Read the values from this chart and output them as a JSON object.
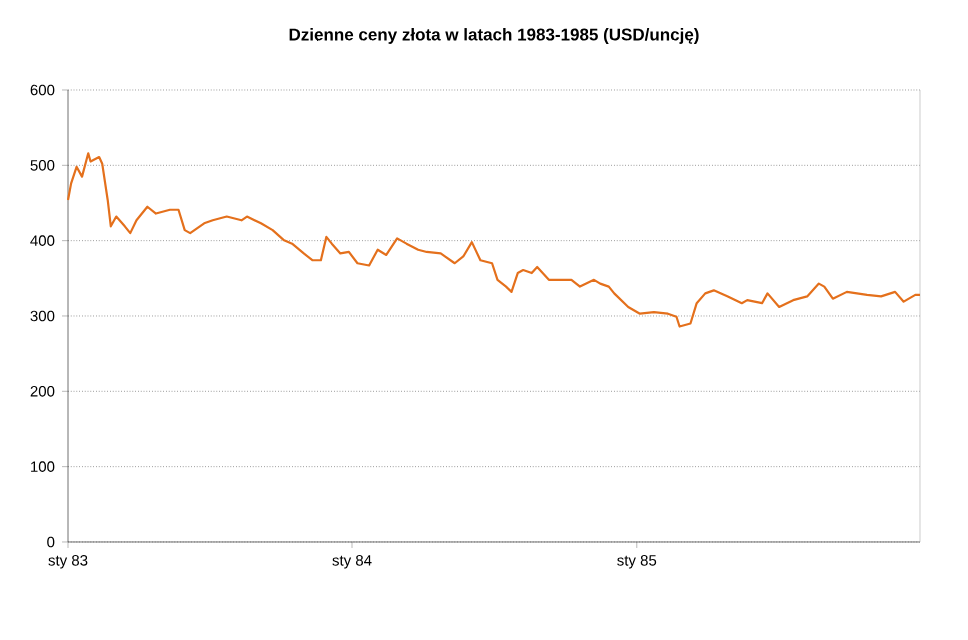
{
  "chart_data": {
    "type": "line",
    "title": "Dzienne ceny złota w latach 1983-1985 (USD/uncję)",
    "x": [
      "1983-01-01",
      "1983-01-05",
      "1983-01-12",
      "1983-01-19",
      "1983-01-27",
      "1983-01-30",
      "1983-02-10",
      "1983-02-14",
      "1983-02-21",
      "1983-02-25",
      "1983-03-04",
      "1983-03-15",
      "1983-03-22",
      "1983-03-30",
      "1983-04-13",
      "1983-04-24",
      "1983-05-12",
      "1983-05-23",
      "1983-05-31",
      "1983-06-07",
      "1983-06-25",
      "1983-07-06",
      "1983-07-24",
      "1983-08-12",
      "1983-08-19",
      "1983-09-06",
      "1983-09-21",
      "1983-10-05",
      "1983-10-16",
      "1983-10-31",
      "1983-11-11",
      "1983-11-22",
      "1983-11-29",
      "1983-12-06",
      "1983-12-17",
      "1983-12-28",
      "1984-01-08",
      "1984-01-23",
      "1984-02-03",
      "1984-02-14",
      "1984-02-28",
      "1984-03-11",
      "1984-03-26",
      "1984-04-06",
      "1984-04-24",
      "1984-05-12",
      "1984-05-23",
      "1984-06-03",
      "1984-06-14",
      "1984-06-29",
      "1984-07-06",
      "1984-07-17",
      "1984-07-24",
      "1984-08-01",
      "1984-08-08",
      "1984-08-19",
      "1984-08-26",
      "1984-09-10",
      "1984-09-24",
      "1984-10-09",
      "1984-10-20",
      "1984-11-07",
      "1984-11-15",
      "1984-11-26",
      "1984-12-03",
      "1984-12-21",
      "1985-01-05",
      "1985-01-23",
      "1985-02-10",
      "1985-02-21",
      "1985-02-25",
      "1985-03-11",
      "1985-03-19",
      "1985-03-30",
      "1985-04-10",
      "1985-04-28",
      "1985-05-16",
      "1985-05-23",
      "1985-06-11",
      "1985-06-18",
      "1985-07-03",
      "1985-07-21",
      "1985-08-08",
      "1985-08-23",
      "1985-08-30",
      "1985-09-10",
      "1985-09-28",
      "1985-10-24",
      "1985-11-11",
      "1985-11-29",
      "1985-12-10",
      "1985-12-25",
      "1985-12-31"
    ],
    "values": [
      454,
      476,
      498,
      485,
      516,
      505,
      511,
      502,
      454,
      419,
      432,
      419,
      410,
      427,
      445,
      436,
      441,
      441,
      414,
      410,
      423,
      427,
      432,
      427,
      432,
      423,
      414,
      401,
      396,
      383,
      374,
      374,
      405,
      396,
      383,
      385,
      370,
      367,
      388,
      381,
      403,
      396,
      388,
      385,
      383,
      370,
      379,
      398,
      374,
      370,
      348,
      339,
      332,
      357,
      361,
      357,
      365,
      348,
      348,
      348,
      339,
      348,
      343,
      339,
      330,
      312,
      303,
      305,
      303,
      299,
      286,
      290,
      317,
      330,
      334,
      326,
      317,
      321,
      317,
      330,
      312,
      321,
      326,
      343,
      339,
      323,
      332,
      328,
      326,
      332,
      319,
      328,
      328
    ],
    "color": "#e4701c",
    "xlim": [
      "1983-01-01",
      "1985-12-31"
    ],
    "xticks": [
      {
        "value": "1983-01-01",
        "label": "sty 83"
      },
      {
        "value": "1984-01-01",
        "label": "sty 84"
      },
      {
        "value": "1985-01-01",
        "label": "sty 85"
      }
    ],
    "ylim": [
      0,
      600
    ],
    "yticks": [
      0,
      100,
      200,
      300,
      400,
      500,
      600
    ],
    "grid": "y",
    "marker": "none",
    "line_style": "solid"
  }
}
